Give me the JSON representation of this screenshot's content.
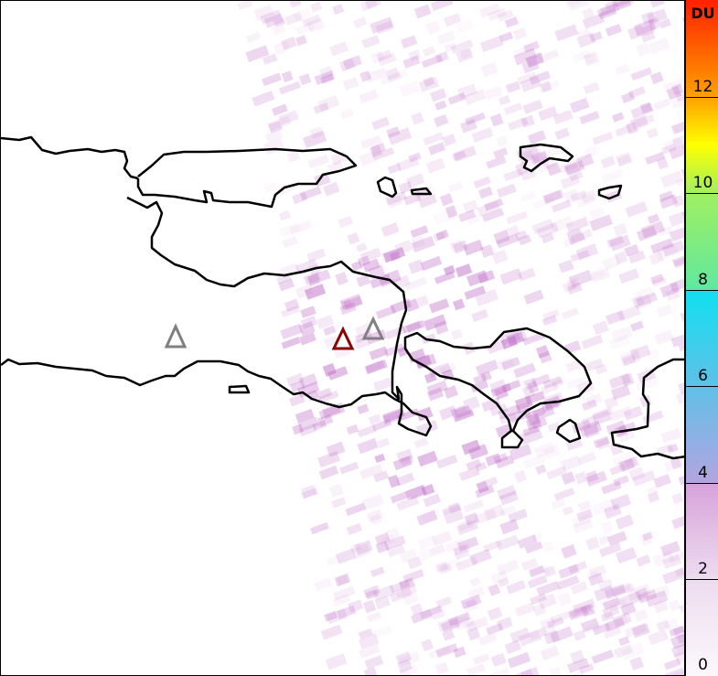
{
  "colorbar": {
    "unit": "DU",
    "min": 0,
    "max": 14,
    "ticks": [
      "0",
      "2",
      "4",
      "6",
      "8",
      "10",
      "12"
    ],
    "color_stops": [
      {
        "value": 0,
        "color": "#fbf8fc"
      },
      {
        "value": 2,
        "color": "#eedcf0"
      },
      {
        "value": 3.99,
        "color": "#d7a2da"
      },
      {
        "value": 4,
        "color": "#b4a4e0"
      },
      {
        "value": 6,
        "color": "#60c0e8"
      },
      {
        "value": 7.99,
        "color": "#10e0f0"
      },
      {
        "value": 8,
        "color": "#60e8a0"
      },
      {
        "value": 10,
        "color": "#a0f060"
      },
      {
        "value": 11,
        "color": "#ffff00"
      },
      {
        "value": 12,
        "color": "#ffa000"
      },
      {
        "value": 14,
        "color": "#ff2000"
      }
    ]
  },
  "markers": [
    {
      "name": "volcano-1",
      "color": "#808080"
    },
    {
      "name": "volcano-active",
      "color": "#8b0000"
    },
    {
      "name": "volcano-2",
      "color": "#808080"
    }
  ],
  "pixel_color": "#c070c8"
}
